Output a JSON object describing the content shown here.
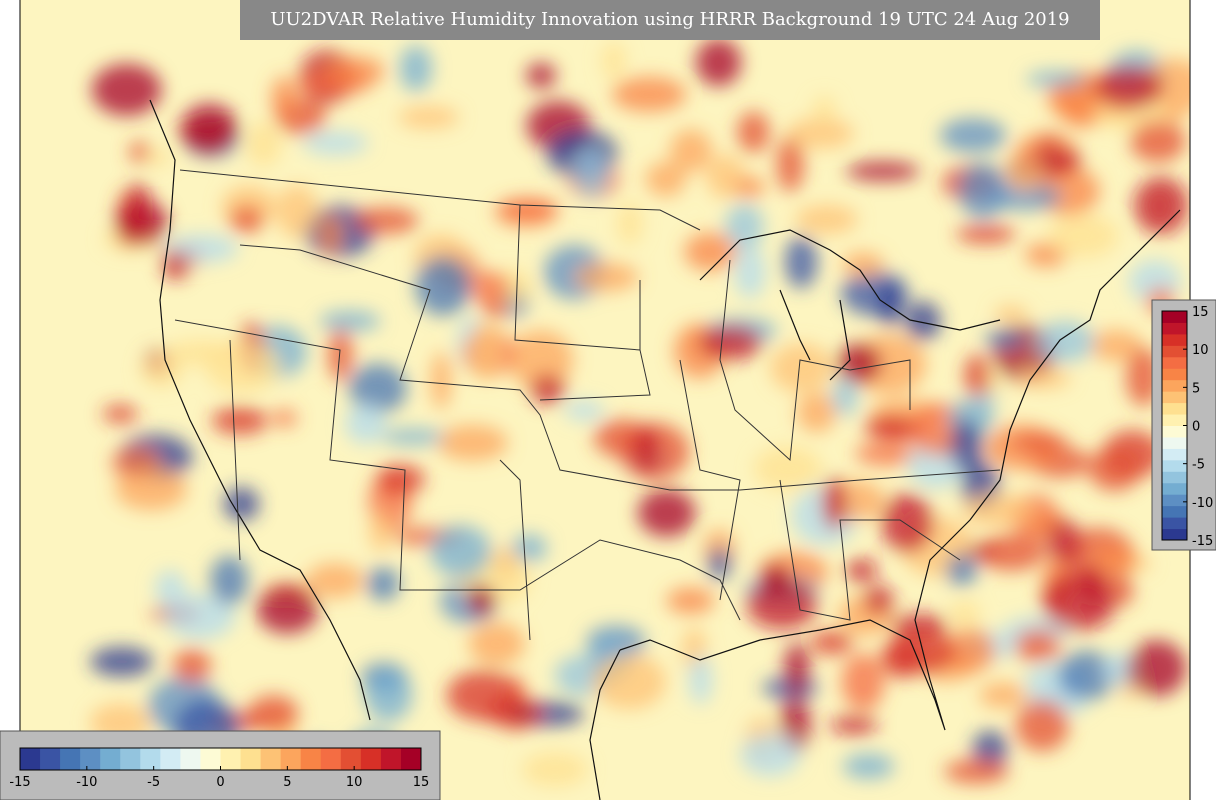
{
  "title": "UU2DVAR Relative Humidity Innovation using HRRR Background 19 UTC 24 Aug 2019",
  "colorbar": {
    "range": [
      -15,
      15
    ],
    "ticks": [
      -15,
      -10,
      -5,
      0,
      5,
      10,
      15
    ],
    "colors": [
      "#2b3990",
      "#3a54a4",
      "#4575b4",
      "#5d8fc3",
      "#74add1",
      "#93c4de",
      "#b3dbec",
      "#d3ecf4",
      "#eef8f0",
      "#fdfbd5",
      "#fff1b0",
      "#fee090",
      "#fdc275",
      "#fca55d",
      "#f88446",
      "#f46d43",
      "#e34f33",
      "#d73027",
      "#c0152a",
      "#a50026"
    ]
  }
}
